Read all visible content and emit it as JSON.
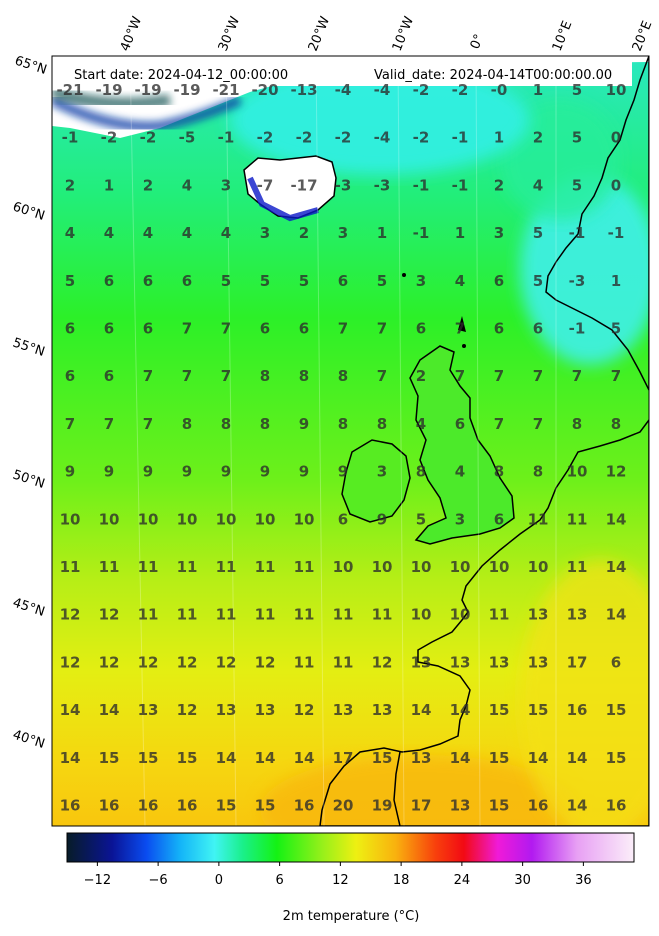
{
  "map": {
    "start_date": "Start date: 2024-04-12_00:00:00",
    "valid_date": "Valid_date: 2024-04-14T00:00:00.00",
    "longitude_labels": [
      "40°W",
      "30°W",
      "20°W",
      "10°W",
      "0°",
      "10°E",
      "20°E"
    ],
    "latitude_labels": [
      "65°N",
      "60°N",
      "55°N",
      "50°N",
      "45°N",
      "40°N"
    ],
    "grid_values": [
      [
        "-21",
        "-19",
        "-19",
        "-19",
        "-21",
        "-20",
        "-13",
        "-4",
        "-4",
        "-2",
        "-2",
        "-0",
        "1",
        "5",
        "10"
      ],
      [
        "-1",
        "-2",
        "-2",
        "-5",
        "-1",
        "-2",
        "-2",
        "-2",
        "-4",
        "-2",
        "-1",
        "1",
        "2",
        "5",
        "0"
      ],
      [
        "2",
        "1",
        "2",
        "4",
        "3",
        "-7",
        "-17",
        "-3",
        "-3",
        "-1",
        "-1",
        "2",
        "4",
        "5",
        "0"
      ],
      [
        "4",
        "4",
        "4",
        "4",
        "4",
        "3",
        "2",
        "3",
        "1",
        "-1",
        "1",
        "3",
        "5",
        "-1",
        "-1"
      ],
      [
        "5",
        "6",
        "6",
        "6",
        "5",
        "5",
        "5",
        "6",
        "5",
        "3",
        "4",
        "6",
        "5",
        "-3",
        "1"
      ],
      [
        "6",
        "6",
        "6",
        "7",
        "7",
        "6",
        "6",
        "7",
        "7",
        "6",
        "7",
        "6",
        "6",
        "-1",
        "5"
      ],
      [
        "6",
        "6",
        "7",
        "7",
        "7",
        "8",
        "8",
        "8",
        "7",
        "2",
        "7",
        "7",
        "7",
        "7",
        "7"
      ],
      [
        "7",
        "7",
        "7",
        "8",
        "8",
        "8",
        "9",
        "8",
        "8",
        "4",
        "6",
        "7",
        "7",
        "8",
        "8"
      ],
      [
        "9",
        "9",
        "9",
        "9",
        "9",
        "9",
        "9",
        "9",
        "3",
        "8",
        "4",
        "8",
        "8",
        "10",
        "12"
      ],
      [
        "10",
        "10",
        "10",
        "10",
        "10",
        "10",
        "10",
        "6",
        "9",
        "5",
        "3",
        "6",
        "11",
        "11",
        "14"
      ],
      [
        "11",
        "11",
        "11",
        "11",
        "11",
        "11",
        "11",
        "10",
        "10",
        "10",
        "10",
        "10",
        "10",
        "11",
        "14"
      ],
      [
        "12",
        "12",
        "11",
        "11",
        "11",
        "11",
        "11",
        "11",
        "11",
        "10",
        "10",
        "11",
        "13",
        "13",
        "14"
      ],
      [
        "12",
        "12",
        "12",
        "12",
        "12",
        "12",
        "11",
        "11",
        "12",
        "13",
        "13",
        "13",
        "13",
        "17",
        "6"
      ],
      [
        "14",
        "14",
        "13",
        "12",
        "13",
        "13",
        "12",
        "13",
        "13",
        "14",
        "14",
        "15",
        "15",
        "16",
        "15"
      ],
      [
        "14",
        "15",
        "15",
        "15",
        "14",
        "14",
        "14",
        "17",
        "15",
        "13",
        "14",
        "15",
        "14",
        "14",
        "15"
      ],
      [
        "16",
        "16",
        "16",
        "16",
        "15",
        "15",
        "16",
        "20",
        "19",
        "17",
        "13",
        "15",
        "16",
        "14",
        "16"
      ]
    ]
  },
  "colorbar": {
    "title": "2m temperature (°C)",
    "ticks": [
      "−12",
      "−6",
      "0",
      "6",
      "12",
      "18",
      "24",
      "30",
      "36"
    ],
    "range": [
      -15,
      41
    ]
  },
  "colors": {
    "ice": "#ffffff",
    "cold_deep": "#0a1a8a",
    "cyan": "#35f0f0",
    "teal_green": "#19e89a",
    "green": "#1ff21a",
    "lime": "#9ef01a",
    "yellow": "#f0ec14",
    "orange": "#f7c20e",
    "land_outline": "#000000"
  }
}
